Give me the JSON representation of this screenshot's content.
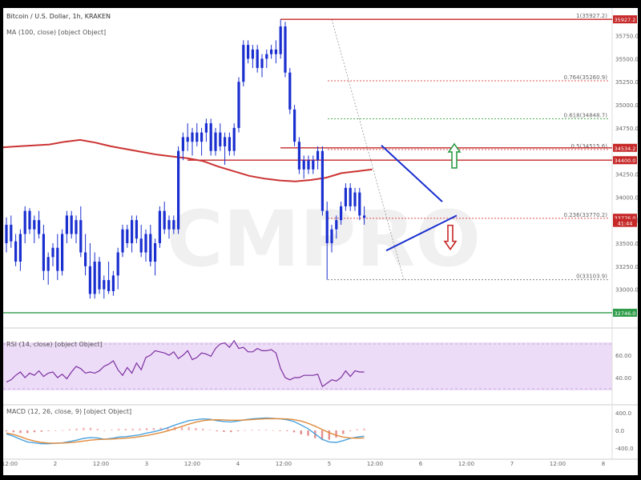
{
  "header": {
    "title": "Bitcoin / U.S. Dollar, 1h, KRAKEN",
    "ma_legend": "MA (100, close) [object Object]"
  },
  "watermark": "CMPRO",
  "main_chart": {
    "price_axis_ticks": [
      "35750.0",
      "35500.0",
      "35250.0",
      "35000.0",
      "34750.0",
      "34250.0",
      "34000.0",
      "33750.0",
      "33500.0",
      "33250.0",
      "33000.0"
    ],
    "price_axis_range": [
      32650,
      36050
    ],
    "badges": [
      {
        "label": "35927.2",
        "price": 35927.2,
        "color": "#c62828"
      },
      {
        "label": "34534.2",
        "price": 34534.2,
        "color": "#c62828"
      },
      {
        "label": "34400.0",
        "price": 34400.0,
        "color": "#c62828"
      },
      {
        "label": "33776.0",
        "price": 33776.0,
        "color": "#c62828"
      },
      {
        "label": "41:44",
        "price": 33720.0,
        "color": "#c62828"
      },
      {
        "label": "32746.0",
        "price": 32746.0,
        "color": "#2e9c48"
      }
    ],
    "fib_levels": [
      {
        "label": "1(35927.2)",
        "price": 35927.2,
        "color": "#888888"
      },
      {
        "label": "0.764(35260.9)",
        "price": 35260.9,
        "color": "#e05050"
      },
      {
        "label": "0.618(34848.7)",
        "price": 34848.7,
        "color": "#4caf50"
      },
      {
        "label": "0.5(34515.6)",
        "price": 34515.6,
        "color": "#e05050"
      },
      {
        "label": "0.236(33770.2)",
        "price": 33770.2,
        "color": "#e05050"
      },
      {
        "label": "0(33103.9)",
        "price": 33103.9,
        "color": "#888888"
      }
    ],
    "colors": {
      "candles": "#1a2fd0",
      "resistance": "#c62828",
      "support": "#2e9c48",
      "ma": "#cc3333",
      "triangle": "#1a2fd0",
      "arrow_up": "#2e9c48",
      "arrow_down": "#c62828"
    }
  },
  "chart_data": [
    {
      "type": "candlestick",
      "title": "Bitcoin / U.S. Dollar, 1h, KRAKEN",
      "ylim": [
        32650,
        36050
      ],
      "x_tick_labels": [
        "12:00",
        "2",
        "12:00",
        "3",
        "12:00",
        "4",
        "12:00",
        "5",
        "12:00",
        "6",
        "12:00",
        "7",
        "12:00",
        "8"
      ],
      "series": [
        {
          "name": "MA (100, close)",
          "type": "line",
          "values": [
            34540,
            34550,
            34560,
            34570,
            34600,
            34620,
            34590,
            34550,
            34520,
            34490,
            34460,
            34440,
            34420,
            34390,
            34330,
            34280,
            34230,
            34200,
            34180,
            34170,
            34185,
            34210,
            34260,
            34280,
            34300
          ]
        }
      ],
      "ohlc": [
        [
          33500,
          33780,
          33400,
          33700
        ],
        [
          33700,
          33800,
          33450,
          33520
        ],
        [
          33520,
          33600,
          33250,
          33300
        ],
        [
          33300,
          33650,
          33200,
          33600
        ],
        [
          33600,
          33900,
          33500,
          33850
        ],
        [
          33850,
          33880,
          33600,
          33650
        ],
        [
          33650,
          33800,
          33500,
          33750
        ],
        [
          33750,
          33850,
          33550,
          33600
        ],
        [
          33600,
          33700,
          33100,
          33200
        ],
        [
          33200,
          33400,
          33050,
          33350
        ],
        [
          33350,
          33500,
          33250,
          33450
        ],
        [
          33450,
          33600,
          33100,
          33200
        ],
        [
          33200,
          33650,
          33150,
          33600
        ],
        [
          33600,
          33850,
          33500,
          33800
        ],
        [
          33800,
          33850,
          33550,
          33600
        ],
        [
          33600,
          33800,
          33500,
          33750
        ],
        [
          33750,
          33900,
          33350,
          33400
        ],
        [
          33400,
          33600,
          33150,
          33250
        ],
        [
          33250,
          33500,
          32900,
          32950
        ],
        [
          32950,
          33400,
          32900,
          33300
        ],
        [
          33300,
          33350,
          32950,
          33000
        ],
        [
          33000,
          33150,
          32900,
          33100
        ],
        [
          33100,
          33300,
          32950,
          32980
        ],
        [
          32980,
          33200,
          32930,
          33150
        ],
        [
          33150,
          33450,
          33000,
          33400
        ],
        [
          33400,
          33700,
          33350,
          33650
        ],
        [
          33650,
          33700,
          33450,
          33500
        ],
        [
          33500,
          33800,
          33400,
          33750
        ],
        [
          33750,
          33800,
          33500,
          33550
        ],
        [
          33550,
          33700,
          33350,
          33400
        ],
        [
          33400,
          33650,
          33300,
          33600
        ],
        [
          33600,
          33700,
          33250,
          33300
        ],
        [
          33300,
          33550,
          33150,
          33500
        ],
        [
          33500,
          33900,
          33450,
          33850
        ],
        [
          33850,
          33950,
          33600,
          33650
        ],
        [
          33650,
          33800,
          33550,
          33750
        ],
        [
          33750,
          33800,
          33600,
          33650
        ],
        [
          33650,
          34550,
          33600,
          34500
        ],
        [
          34500,
          34700,
          34400,
          34650
        ],
        [
          34650,
          34800,
          34500,
          34600
        ],
        [
          34600,
          34750,
          34450,
          34700
        ],
        [
          34700,
          34800,
          34550,
          34600
        ],
        [
          34600,
          34750,
          34450,
          34700
        ],
        [
          34700,
          34850,
          34600,
          34800
        ],
        [
          34800,
          34850,
          34450,
          34500
        ],
        [
          34500,
          34750,
          34450,
          34700
        ],
        [
          34700,
          34800,
          34500,
          34550
        ],
        [
          34550,
          34700,
          34350,
          34650
        ],
        [
          34650,
          34700,
          34450,
          34500
        ],
        [
          34500,
          34800,
          34450,
          34750
        ],
        [
          34750,
          35300,
          34700,
          35250
        ],
        [
          35250,
          35700,
          35200,
          35650
        ],
        [
          35650,
          35700,
          35450,
          35500
        ],
        [
          35500,
          35650,
          35400,
          35600
        ],
        [
          35600,
          35650,
          35350,
          35400
        ],
        [
          35400,
          35550,
          35300,
          35500
        ],
        [
          35500,
          35600,
          35400,
          35550
        ],
        [
          35550,
          35650,
          35500,
          35600
        ],
        [
          35600,
          35700,
          35450,
          35550
        ],
        [
          35550,
          35927,
          35500,
          35850
        ],
        [
          35850,
          35900,
          35300,
          35350
        ],
        [
          35350,
          35400,
          34900,
          34950
        ],
        [
          34950,
          35000,
          34550,
          34600
        ],
        [
          34600,
          34650,
          34250,
          34300
        ],
        [
          34300,
          34450,
          34200,
          34400
        ],
        [
          34400,
          34450,
          34250,
          34300
        ],
        [
          34300,
          34450,
          34250,
          34400
        ],
        [
          34400,
          34550,
          34300,
          34500
        ],
        [
          34500,
          34550,
          33800,
          33850
        ],
        [
          33850,
          33950,
          33104,
          33500
        ],
        [
          33500,
          33700,
          33400,
          33650
        ],
        [
          33650,
          33800,
          33550,
          33750
        ],
        [
          33750,
          33950,
          33700,
          33900
        ],
        [
          33900,
          34150,
          33850,
          34100
        ],
        [
          34100,
          34150,
          33850,
          33900
        ],
        [
          33900,
          34100,
          33850,
          34050
        ],
        [
          34050,
          34100,
          33750,
          33800
        ],
        [
          33800,
          33900,
          33700,
          33776
        ]
      ]
    },
    {
      "type": "line",
      "title": "RSI (14, close) [object Object]",
      "ylim": [
        20,
        80
      ],
      "y_tick_labels": [
        "60.00",
        "40.00"
      ],
      "series": [
        {
          "name": "RSI",
          "values": [
            36,
            38,
            42,
            45,
            40,
            44,
            42,
            46,
            41,
            44,
            45,
            40,
            43,
            39,
            45,
            50,
            48,
            44,
            45,
            44,
            46,
            50,
            52,
            55,
            47,
            42,
            49,
            44,
            53,
            47,
            58,
            60,
            64,
            63,
            62,
            60,
            63,
            57,
            60,
            64,
            56,
            58,
            62,
            61,
            59,
            66,
            70,
            71,
            67,
            73,
            66,
            67,
            63,
            63,
            66,
            64,
            64,
            65,
            62,
            48,
            40,
            38,
            40,
            40,
            42,
            42,
            42,
            43,
            32,
            35,
            38,
            37,
            40,
            46,
            41,
            46,
            45,
            45
          ]
        }
      ]
    },
    {
      "type": "line",
      "title": "MACD (12, 26, close, 9) [object Object]",
      "ylim": [
        -540,
        540
      ],
      "y_tick_labels": [
        "400.0",
        "0.0",
        "-400.0"
      ],
      "series": [
        {
          "name": "MACD",
          "values": [
            -80,
            -130,
            -200,
            -260,
            -280,
            -300,
            -300,
            -290,
            -280,
            -250,
            -220,
            -180,
            -160,
            -170,
            -200,
            -180,
            -150,
            -140,
            -120,
            -100,
            -60,
            -30,
            10,
            60,
            120,
            170,
            220,
            240,
            260,
            250,
            220,
            200,
            190,
            210,
            240,
            260,
            270,
            280,
            270,
            260,
            240,
            200,
            120,
            40,
            -80,
            -200,
            -260,
            -270,
            -230,
            -180,
            -150,
            -130
          ]
        },
        {
          "name": "Signal",
          "values": [
            -60,
            -90,
            -140,
            -200,
            -240,
            -270,
            -285,
            -290,
            -285,
            -275,
            -260,
            -240,
            -220,
            -205,
            -200,
            -195,
            -185,
            -175,
            -160,
            -140,
            -115,
            -85,
            -50,
            -10,
            40,
            90,
            140,
            185,
            220,
            235,
            240,
            235,
            228,
            228,
            234,
            244,
            253,
            262,
            264,
            263,
            257,
            242,
            210,
            160,
            95,
            20,
            -50,
            -110,
            -150,
            -170,
            -175,
            -170
          ]
        },
        {
          "name": "Histogram",
          "values": [
            -20,
            -40,
            -60,
            -60,
            -40,
            -30,
            -15,
            0,
            5,
            25,
            40,
            60,
            60,
            35,
            0,
            15,
            35,
            35,
            40,
            40,
            55,
            55,
            60,
            70,
            80,
            80,
            80,
            55,
            40,
            15,
            -20,
            -35,
            -38,
            -18,
            6,
            16,
            17,
            18,
            6,
            -3,
            -17,
            -42,
            -90,
            -120,
            -175,
            -220,
            -210,
            -160,
            -80,
            -10,
            25,
            40
          ]
        }
      ]
    }
  ]
}
